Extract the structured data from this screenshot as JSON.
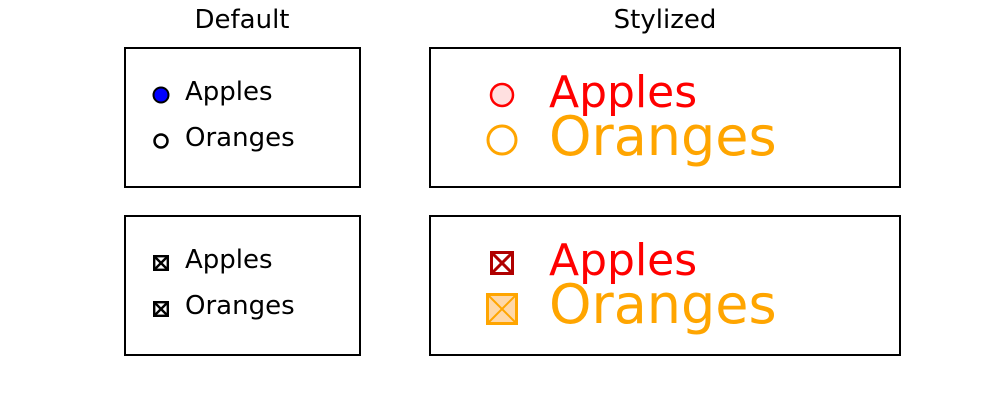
{
  "titles": {
    "default": "Default",
    "stylized": "Stylized"
  },
  "radio_default": {
    "items": [
      {
        "label": "Apples",
        "checked": true,
        "fill": "#0000ff",
        "edge": "#000000"
      },
      {
        "label": "Oranges",
        "checked": false,
        "fill": "#ffffff",
        "edge": "#000000"
      }
    ]
  },
  "radio_stylized": {
    "items": [
      {
        "label": "Apples",
        "color": "#ff0000",
        "fill": "#ffe0e0"
      },
      {
        "label": "Oranges",
        "color": "#ffa500",
        "fill": "#ffffff"
      }
    ]
  },
  "check_default": {
    "items": [
      {
        "label": "Apples",
        "checked": true,
        "color": "#000000"
      },
      {
        "label": "Oranges",
        "checked": true,
        "color": "#000000"
      }
    ]
  },
  "check_stylized": {
    "items": [
      {
        "label": "Apples",
        "checked": true,
        "color": "#ff0000",
        "edge": "#b00000",
        "fill": "#ffffff"
      },
      {
        "label": "Oranges",
        "checked": true,
        "color": "#ffa500",
        "edge": "#ffa500",
        "fill": "#ffd8a8"
      }
    ]
  }
}
